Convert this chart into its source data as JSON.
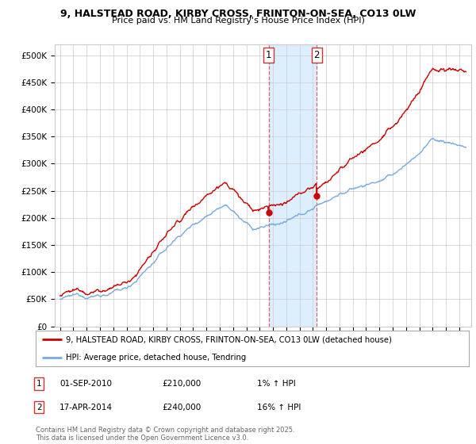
{
  "title1": "9, HALSTEAD ROAD, KIRBY CROSS, FRINTON-ON-SEA, CO13 0LW",
  "title2": "Price paid vs. HM Land Registry's House Price Index (HPI)",
  "ylim": [
    0,
    520000
  ],
  "yticks": [
    0,
    50000,
    100000,
    150000,
    200000,
    250000,
    300000,
    350000,
    400000,
    450000,
    500000
  ],
  "ytick_labels": [
    "£0",
    "£50K",
    "£100K",
    "£150K",
    "£200K",
    "£250K",
    "£300K",
    "£350K",
    "£400K",
    "£450K",
    "£500K"
  ],
  "purchase1_date": 2010.67,
  "purchase1_price": 210000,
  "purchase2_date": 2014.29,
  "purchase2_price": 240000,
  "legend_line1": "9, HALSTEAD ROAD, KIRBY CROSS, FRINTON-ON-SEA, CO13 0LW (detached house)",
  "legend_line2": "HPI: Average price, detached house, Tendring",
  "ann1_date": "01-SEP-2010",
  "ann1_price": "£210,000",
  "ann1_hpi": "1% ↑ HPI",
  "ann2_date": "17-APR-2014",
  "ann2_price": "£240,000",
  "ann2_hpi": "16% ↑ HPI",
  "footer": "Contains HM Land Registry data © Crown copyright and database right 2025.\nThis data is licensed under the Open Government Licence v3.0.",
  "line_color_red": "#cc0000",
  "line_color_blue": "#7aaadd",
  "bg_color": "#ffffff",
  "grid_color": "#cccccc",
  "highlight_color": "#ddeeff",
  "vline_color": "#dd4444"
}
